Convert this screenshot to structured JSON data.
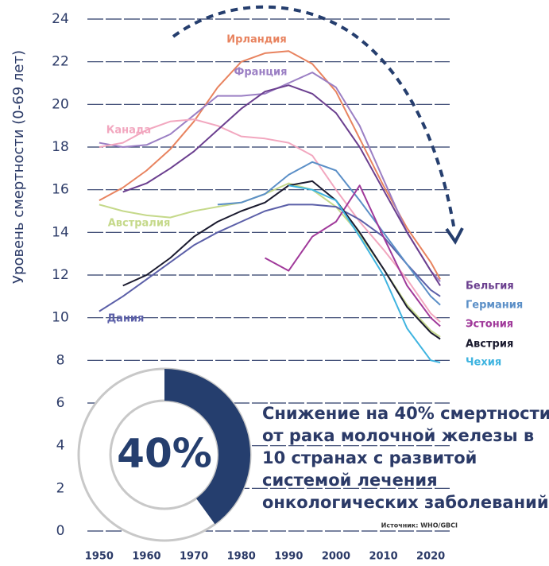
{
  "chart_data": {
    "type": "line",
    "y_label": "Уровень смертности (0-69 лет)",
    "x": [
      1950,
      1955,
      1960,
      1965,
      1970,
      1975,
      1980,
      1985,
      1990,
      1995,
      2000,
      2005,
      2010,
      2015,
      2020,
      2022
    ],
    "xlim": [
      1947,
      2024
    ],
    "xticks": [
      1950,
      1960,
      1970,
      1980,
      1990,
      2000,
      2010,
      2020
    ],
    "ylim": [
      0,
      24
    ],
    "yticks": [
      0,
      2,
      4,
      6,
      8,
      10,
      12,
      14,
      16,
      18,
      20,
      22,
      24
    ],
    "grid": true,
    "series": [
      {
        "name": "Ирландия",
        "color": "#e8835f",
        "values": [
          15.5,
          16.1,
          16.9,
          17.9,
          19.2,
          20.8,
          22.0,
          22.4,
          22.5,
          21.9,
          20.6,
          18.4,
          16.2,
          14.2,
          12.6,
          11.8
        ]
      },
      {
        "name": "Франция",
        "color": "#9b7fc4",
        "values": [
          18.2,
          18.0,
          18.1,
          18.6,
          19.5,
          20.4,
          20.4,
          20.5,
          21.0,
          21.5,
          20.8,
          19.0,
          16.5,
          14.0,
          12.2,
          11.7
        ]
      },
      {
        "name": "Канада",
        "color": "#f2a7bf",
        "values": [
          18.0,
          18.2,
          18.8,
          19.2,
          19.3,
          19.0,
          18.5,
          18.4,
          18.2,
          17.6,
          16.0,
          14.5,
          13.2,
          11.8,
          10.2,
          9.8
        ]
      },
      {
        "name": "Австралия",
        "color": "#c5d98a",
        "values": [
          15.3,
          15.0,
          14.8,
          14.7,
          15.0,
          15.2,
          15.4,
          15.8,
          16.3,
          16.0,
          15.2,
          13.9,
          12.3,
          10.6,
          9.4,
          9.1
        ]
      },
      {
        "name": "Дания",
        "color": "#5b5fa8",
        "values": [
          10.3,
          11.0,
          11.8,
          12.6,
          13.4,
          14.0,
          14.5,
          15.0,
          15.3,
          15.3,
          15.2,
          14.6,
          13.8,
          12.5,
          11.3,
          11.0
        ]
      },
      {
        "name": "Бельгия",
        "color": "#6b3f8f",
        "values": [
          null,
          15.9,
          16.3,
          17.0,
          17.8,
          18.8,
          19.8,
          20.6,
          20.9,
          20.5,
          19.6,
          18.0,
          16.0,
          14.0,
          12.2,
          11.5
        ]
      },
      {
        "name": "Германия",
        "color": "#5b8fc7",
        "values": [
          null,
          null,
          null,
          null,
          null,
          15.3,
          15.4,
          15.8,
          16.7,
          17.3,
          16.9,
          15.5,
          14.0,
          12.5,
          11.0,
          10.6
        ]
      },
      {
        "name": "Эстония",
        "color": "#a0399a",
        "values": [
          null,
          null,
          null,
          null,
          null,
          null,
          null,
          12.8,
          12.2,
          13.8,
          14.5,
          16.2,
          13.8,
          11.5,
          10.0,
          9.6
        ]
      },
      {
        "name": "Австрия",
        "color": "#1a1a2e",
        "values": [
          null,
          11.5,
          12.0,
          12.8,
          13.8,
          14.5,
          15.0,
          15.4,
          16.2,
          16.4,
          15.5,
          14.0,
          12.3,
          10.5,
          9.3,
          9.0
        ]
      },
      {
        "name": "Чехия",
        "color": "#3fb4e0",
        "values": [
          null,
          null,
          null,
          null,
          null,
          null,
          null,
          null,
          16.2,
          16.0,
          15.5,
          13.8,
          12.0,
          9.5,
          8.0,
          7.9
        ]
      }
    ],
    "donut": {
      "value": 40,
      "value_label": "40%",
      "color": "#253e6e"
    },
    "annotation": [
      "Снижение на 40% смертности",
      "от рака молочной железы в",
      "10 странах с развитой",
      "системой лечения",
      "онкологических заболеваний"
    ],
    "source": "Источник: WHO/GBCI"
  }
}
